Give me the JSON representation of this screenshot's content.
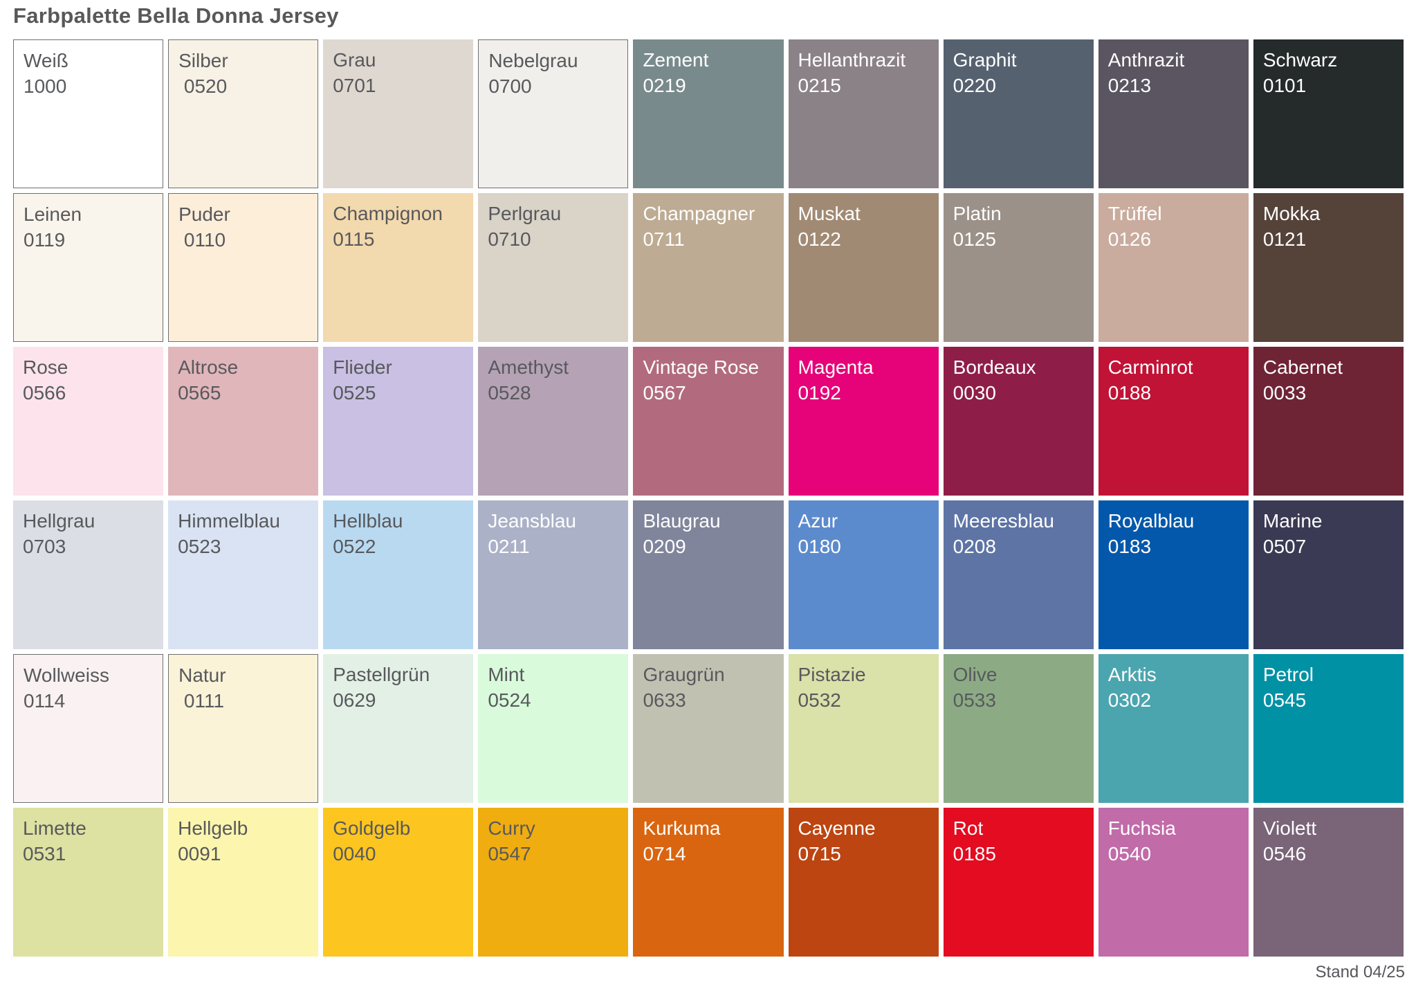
{
  "title": "Farbpalette Bella Donna Jersey",
  "footer": {
    "stand_label": "Stand 04/25"
  },
  "style_colors": {
    "title_text": "#58585a",
    "dark_label": "#58595c",
    "light_label": "#ffffff",
    "swatch_border": "#6e6e6e",
    "page_background": "#ffffff"
  },
  "palette": {
    "columns": 9,
    "rows": [
      [
        {
          "name": "Weiß",
          "code": "1000",
          "bg": "#ffffff",
          "text_style": "dark",
          "border": true
        },
        {
          "name": "Silber",
          "code": " 0520",
          "bg": "#f7f2e5",
          "text_style": "dark",
          "border": true
        },
        {
          "name": "Grau",
          "code": "0701",
          "bg": "#ded8d0",
          "text_style": "dark",
          "border": false
        },
        {
          "name": "Nebelgrau",
          "code": "0700",
          "bg": "#f0efeb",
          "text_style": "dark",
          "border": true
        },
        {
          "name": "Zement",
          "code": "0219",
          "bg": "#798a8c",
          "text_style": "light",
          "border": false
        },
        {
          "name": "Hellanthrazit",
          "code": "0215",
          "bg": "#8b8287",
          "text_style": "light",
          "border": false
        },
        {
          "name": "Graphit",
          "code": "0220",
          "bg": "#566170",
          "text_style": "light",
          "border": false
        },
        {
          "name": "Anthrazit",
          "code": "0213",
          "bg": "#5a5560",
          "text_style": "light",
          "border": false
        },
        {
          "name": "Schwarz",
          "code": "0101",
          "bg": "#252a2b",
          "text_style": "light",
          "border": false
        }
      ],
      [
        {
          "name": "Leinen",
          "code": "0119",
          "bg": "#faf5ec",
          "text_style": "dark",
          "border": true
        },
        {
          "name": "Puder",
          "code": " 0110",
          "bg": "#fdeeda",
          "text_style": "dark",
          "border": true
        },
        {
          "name": "Champignon",
          "code": "0115",
          "bg": "#f2d9ae",
          "text_style": "dark",
          "border": false
        },
        {
          "name": "Perlgrau",
          "code": "0710",
          "bg": "#d9d3c8",
          "text_style": "dark",
          "border": false
        },
        {
          "name": "Champagner",
          "code": "0711",
          "bg": "#bdab93",
          "text_style": "light",
          "border": false
        },
        {
          "name": "Muskat",
          "code": "0122",
          "bg": "#a18a73",
          "text_style": "light",
          "border": false
        },
        {
          "name": "Platin",
          "code": "0125",
          "bg": "#9b9189",
          "text_style": "light",
          "border": false
        },
        {
          "name": "Trüffel",
          "code": "0126",
          "bg": "#c9ac9e",
          "text_style": "light",
          "border": false
        },
        {
          "name": "Mokka",
          "code": "0121",
          "bg": "#55433a",
          "text_style": "light",
          "border": false
        }
      ],
      [
        {
          "name": "Rose",
          "code": "0566",
          "bg": "#fce3ec",
          "text_style": "dark",
          "border": false
        },
        {
          "name": "Altrose",
          "code": "0565",
          "bg": "#e0b6bb",
          "text_style": "dark",
          "border": false
        },
        {
          "name": "Flieder",
          "code": "0525",
          "bg": "#c9c0e3",
          "text_style": "dark",
          "border": false
        },
        {
          "name": "Amethyst",
          "code": "0528",
          "bg": "#b5a3b5",
          "text_style": "dark",
          "border": false
        },
        {
          "name": "Vintage Rose",
          "code": "0567",
          "bg": "#b26b7e",
          "text_style": "light",
          "border": false
        },
        {
          "name": "Magenta",
          "code": "0192",
          "bg": "#e60278",
          "text_style": "light",
          "border": false
        },
        {
          "name": "Bordeaux",
          "code": "0030",
          "bg": "#8e1e48",
          "text_style": "light",
          "border": false
        },
        {
          "name": "Carminrot",
          "code": "0188",
          "bg": "#c11336",
          "text_style": "light",
          "border": false
        },
        {
          "name": "Cabernet",
          "code": "0033",
          "bg": "#6f2436",
          "text_style": "light",
          "border": false
        }
      ],
      [
        {
          "name": "Hellgrau",
          "code": "0703",
          "bg": "#dbdfe5",
          "text_style": "dark",
          "border": false
        },
        {
          "name": "Himmelblau",
          "code": "0523",
          "bg": "#d9e3f3",
          "text_style": "dark",
          "border": false
        },
        {
          "name": "Hellblau",
          "code": "0522",
          "bg": "#b9d9f1",
          "text_style": "dark",
          "border": false
        },
        {
          "name": "Jeansblau",
          "code": "0211",
          "bg": "#abb1c7",
          "text_style": "light",
          "border": false
        },
        {
          "name": "Blaugrau",
          "code": "0209",
          "bg": "#80859b",
          "text_style": "light",
          "border": false
        },
        {
          "name": "Azur",
          "code": "0180",
          "bg": "#5c8bcd",
          "text_style": "light",
          "border": false
        },
        {
          "name": "Meeresblau",
          "code": "0208",
          "bg": "#5d74a5",
          "text_style": "light",
          "border": false
        },
        {
          "name": "Royalblau",
          "code": "0183",
          "bg": "#0458ab",
          "text_style": "light",
          "border": false
        },
        {
          "name": "Marine",
          "code": "0507",
          "bg": "#3a3a54",
          "text_style": "light",
          "border": false
        }
      ],
      [
        {
          "name": "Wollweiss",
          "code": "0114",
          "bg": "#faf2f2",
          "text_style": "dark",
          "border": true
        },
        {
          "name": "Natur",
          "code": " 0111",
          "bg": "#faf3d8",
          "text_style": "dark",
          "border": true
        },
        {
          "name": "Pastellgrün",
          "code": "0629",
          "bg": "#e3f0e5",
          "text_style": "dark",
          "border": false
        },
        {
          "name": "Mint",
          "code": "0524",
          "bg": "#d9fbdc",
          "text_style": "dark",
          "border": false
        },
        {
          "name": "Graugrün",
          "code": "0633",
          "bg": "#c1c1b2",
          "text_style": "dark",
          "border": false
        },
        {
          "name": "Pistazie",
          "code": "0532",
          "bg": "#dae1a9",
          "text_style": "dark",
          "border": false
        },
        {
          "name": "Olive",
          "code": "0533",
          "bg": "#8cab85",
          "text_style": "dark",
          "border": false
        },
        {
          "name": "Arktis",
          "code": "0302",
          "bg": "#4ba5af",
          "text_style": "light",
          "border": false
        },
        {
          "name": "Petrol",
          "code": "0545",
          "bg": "#0091a5",
          "text_style": "light",
          "border": false
        }
      ],
      [
        {
          "name": "Limette",
          "code": "0531",
          "bg": "#dde1a1",
          "text_style": "dark",
          "border": false
        },
        {
          "name": "Hellgelb",
          "code": "0091",
          "bg": "#fbf5ae",
          "text_style": "dark",
          "border": false
        },
        {
          "name": "Goldgelb",
          "code": "0040",
          "bg": "#fcc520",
          "text_style": "dark",
          "border": false
        },
        {
          "name": "Curry",
          "code": "0547",
          "bg": "#f0ad10",
          "text_style": "dark",
          "border": false
        },
        {
          "name": "Kurkuma",
          "code": "0714",
          "bg": "#d96510",
          "text_style": "light",
          "border": false
        },
        {
          "name": "Cayenne",
          "code": "0715",
          "bg": "#bc4511",
          "text_style": "light",
          "border": false
        },
        {
          "name": "Rot",
          "code": "0185",
          "bg": "#e30c20",
          "text_style": "light",
          "border": false
        },
        {
          "name": "Fuchsia",
          "code": "0540",
          "bg": "#c16ba9",
          "text_style": "light",
          "border": false
        },
        {
          "name": "Violett",
          "code": "0546",
          "bg": "#7a6478",
          "text_style": "light",
          "border": false
        }
      ]
    ]
  }
}
